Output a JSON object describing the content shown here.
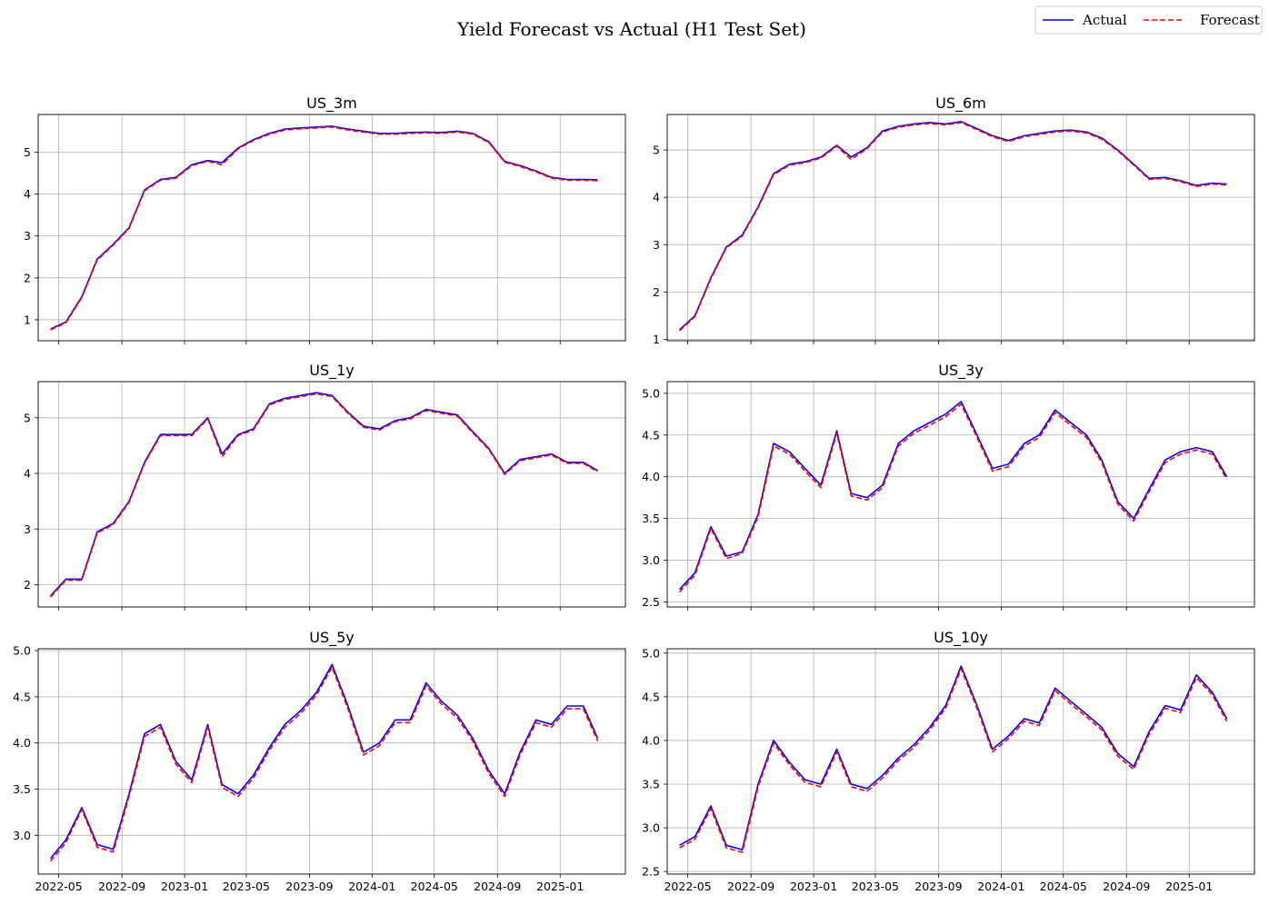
{
  "figure": {
    "title": "Yield Forecast vs Actual (H1 Test Set)",
    "legend": {
      "placement": "top-right",
      "entries": [
        "Actual",
        "Forecast"
      ]
    },
    "colors": {
      "actual": "#0000ff",
      "forecast": "#ff0000",
      "grid": "#b0b0b0",
      "axes": "#000000"
    }
  },
  "chart_data": [
    {
      "type": "line",
      "title": "US_3m",
      "xlabel": "",
      "ylabel": "",
      "x_dates": [
        "2022-04-15",
        "2022-05-15",
        "2022-06-15",
        "2022-07-15",
        "2022-08-15",
        "2022-09-15",
        "2022-10-15",
        "2022-11-15",
        "2022-12-15",
        "2023-01-15",
        "2023-02-15",
        "2023-03-15",
        "2023-04-15",
        "2023-05-15",
        "2023-06-15",
        "2023-07-15",
        "2023-08-15",
        "2023-09-15",
        "2023-10-15",
        "2023-11-15",
        "2023-12-15",
        "2024-01-15",
        "2024-02-15",
        "2024-03-15",
        "2024-04-15",
        "2024-05-15",
        "2024-06-15",
        "2024-07-15",
        "2024-08-15",
        "2024-09-15",
        "2024-10-15",
        "2024-11-15",
        "2024-12-15",
        "2025-01-15",
        "2025-02-15",
        "2025-03-15"
      ],
      "series": [
        {
          "name": "Actual",
          "values": [
            0.78,
            0.95,
            1.55,
            2.45,
            2.8,
            3.2,
            4.1,
            4.35,
            4.4,
            4.7,
            4.8,
            4.75,
            5.1,
            5.3,
            5.45,
            5.55,
            5.58,
            5.6,
            5.62,
            5.55,
            5.5,
            5.45,
            5.45,
            5.47,
            5.48,
            5.47,
            5.5,
            5.45,
            5.25,
            4.78,
            4.68,
            4.55,
            4.4,
            4.35,
            4.35,
            4.34
          ]
        },
        {
          "name": "Forecast",
          "values": [
            0.76,
            0.93,
            1.53,
            2.43,
            2.78,
            3.18,
            4.08,
            4.33,
            4.38,
            4.68,
            4.78,
            4.7,
            5.08,
            5.28,
            5.43,
            5.53,
            5.56,
            5.58,
            5.6,
            5.53,
            5.48,
            5.43,
            5.43,
            5.45,
            5.46,
            5.45,
            5.48,
            5.43,
            5.23,
            4.76,
            4.66,
            4.53,
            4.38,
            4.33,
            4.33,
            4.32
          ]
        }
      ],
      "ylim": [
        0.5,
        5.9
      ],
      "yticks": [
        "1",
        "2",
        "3",
        "4",
        "5"
      ],
      "grid": true,
      "xticks": [
        "2022-05",
        "2022-09",
        "2023-01",
        "2023-05",
        "2023-09",
        "2024-01",
        "2024-05",
        "2024-09",
        "2025-01"
      ],
      "show_xtick_labels": false
    },
    {
      "type": "line",
      "title": "US_6m",
      "xlabel": "",
      "ylabel": "",
      "x_dates": [
        "2022-04-15",
        "2022-05-15",
        "2022-06-15",
        "2022-07-15",
        "2022-08-15",
        "2022-09-15",
        "2022-10-15",
        "2022-11-15",
        "2022-12-15",
        "2023-01-15",
        "2023-02-15",
        "2023-03-15",
        "2023-04-15",
        "2023-05-15",
        "2023-06-15",
        "2023-07-15",
        "2023-08-15",
        "2023-09-15",
        "2023-10-15",
        "2023-11-15",
        "2023-12-15",
        "2024-01-15",
        "2024-02-15",
        "2024-03-15",
        "2024-04-15",
        "2024-05-15",
        "2024-06-15",
        "2024-07-15",
        "2024-08-15",
        "2024-09-15",
        "2024-10-15",
        "2024-11-15",
        "2024-12-15",
        "2025-01-15",
        "2025-02-15",
        "2025-03-15"
      ],
      "series": [
        {
          "name": "Actual",
          "values": [
            1.2,
            1.5,
            2.3,
            2.95,
            3.2,
            3.8,
            4.5,
            4.7,
            4.75,
            4.85,
            5.1,
            4.85,
            5.05,
            5.4,
            5.5,
            5.55,
            5.58,
            5.55,
            5.6,
            5.45,
            5.3,
            5.2,
            5.3,
            5.35,
            5.4,
            5.42,
            5.38,
            5.25,
            5.0,
            4.7,
            4.4,
            4.42,
            4.35,
            4.25,
            4.3,
            4.28
          ]
        },
        {
          "name": "Forecast",
          "values": [
            1.18,
            1.48,
            2.28,
            2.93,
            3.18,
            3.78,
            4.48,
            4.68,
            4.73,
            4.83,
            5.08,
            4.8,
            5.03,
            5.38,
            5.48,
            5.53,
            5.56,
            5.53,
            5.58,
            5.43,
            5.28,
            5.18,
            5.28,
            5.33,
            5.38,
            5.4,
            5.36,
            5.23,
            4.98,
            4.68,
            4.38,
            4.4,
            4.33,
            4.23,
            4.28,
            4.26
          ]
        }
      ],
      "ylim": [
        0.97,
        5.75
      ],
      "yticks": [
        "1",
        "2",
        "3",
        "4",
        "5"
      ],
      "grid": true,
      "xticks": [
        "2022-05",
        "2022-09",
        "2023-01",
        "2023-05",
        "2023-09",
        "2024-01",
        "2024-05",
        "2024-09",
        "2025-01"
      ],
      "show_xtick_labels": false
    },
    {
      "type": "line",
      "title": "US_1y",
      "xlabel": "",
      "ylabel": "",
      "x_dates": [
        "2022-04-15",
        "2022-05-15",
        "2022-06-15",
        "2022-07-15",
        "2022-08-15",
        "2022-09-15",
        "2022-10-15",
        "2022-11-15",
        "2022-12-15",
        "2023-01-15",
        "2023-02-15",
        "2023-03-15",
        "2023-04-15",
        "2023-05-15",
        "2023-06-15",
        "2023-07-15",
        "2023-08-15",
        "2023-09-15",
        "2023-10-15",
        "2023-11-15",
        "2023-12-15",
        "2024-01-15",
        "2024-02-15",
        "2024-03-15",
        "2024-04-15",
        "2024-05-15",
        "2024-06-15",
        "2024-07-15",
        "2024-08-15",
        "2024-09-15",
        "2024-10-15",
        "2024-11-15",
        "2024-12-15",
        "2025-01-15",
        "2025-02-15",
        "2025-03-15"
      ],
      "series": [
        {
          "name": "Actual",
          "values": [
            1.8,
            2.1,
            2.1,
            2.95,
            3.1,
            3.5,
            4.2,
            4.7,
            4.7,
            4.7,
            5.0,
            4.35,
            4.7,
            4.8,
            5.25,
            5.35,
            5.4,
            5.45,
            5.4,
            5.1,
            4.85,
            4.8,
            4.95,
            5.0,
            5.15,
            5.1,
            5.05,
            4.75,
            4.45,
            4.0,
            4.25,
            4.3,
            4.35,
            4.2,
            4.2,
            4.05
          ]
        },
        {
          "name": "Forecast",
          "values": [
            1.78,
            2.08,
            2.08,
            2.93,
            3.08,
            3.48,
            4.18,
            4.68,
            4.68,
            4.68,
            4.98,
            4.3,
            4.68,
            4.78,
            5.23,
            5.33,
            5.38,
            5.43,
            5.38,
            5.08,
            4.83,
            4.78,
            4.93,
            4.98,
            5.13,
            5.08,
            5.03,
            4.73,
            4.43,
            3.98,
            4.23,
            4.28,
            4.33,
            4.18,
            4.18,
            4.03
          ]
        }
      ],
      "ylim": [
        1.6,
        5.65
      ],
      "yticks": [
        "2",
        "3",
        "4",
        "5"
      ],
      "grid": true,
      "xticks": [
        "2022-05",
        "2022-09",
        "2023-01",
        "2023-05",
        "2023-09",
        "2024-01",
        "2024-05",
        "2024-09",
        "2025-01"
      ],
      "show_xtick_labels": false
    },
    {
      "type": "line",
      "title": "US_3y",
      "xlabel": "",
      "ylabel": "",
      "x_dates": [
        "2022-04-15",
        "2022-05-15",
        "2022-06-15",
        "2022-07-15",
        "2022-08-15",
        "2022-09-15",
        "2022-10-15",
        "2022-11-15",
        "2022-12-15",
        "2023-01-15",
        "2023-02-15",
        "2023-03-15",
        "2023-04-15",
        "2023-05-15",
        "2023-06-15",
        "2023-07-15",
        "2023-08-15",
        "2023-09-15",
        "2023-10-15",
        "2023-11-15",
        "2023-12-15",
        "2024-01-15",
        "2024-02-15",
        "2024-03-15",
        "2024-04-15",
        "2024-05-15",
        "2024-06-15",
        "2024-07-15",
        "2024-08-15",
        "2024-09-15",
        "2024-10-15",
        "2024-11-15",
        "2024-12-15",
        "2025-01-15",
        "2025-02-15",
        "2025-03-15"
      ],
      "series": [
        {
          "name": "Actual",
          "values": [
            2.65,
            2.85,
            3.4,
            3.05,
            3.1,
            3.55,
            4.4,
            4.3,
            4.1,
            3.9,
            4.55,
            3.8,
            3.75,
            3.9,
            4.4,
            4.55,
            4.65,
            4.75,
            4.9,
            4.5,
            4.1,
            4.15,
            4.4,
            4.5,
            4.8,
            4.65,
            4.5,
            4.2,
            3.7,
            3.5,
            3.85,
            4.2,
            4.3,
            4.35,
            4.3,
            4.0
          ]
        },
        {
          "name": "Forecast",
          "values": [
            2.62,
            2.82,
            3.38,
            3.02,
            3.08,
            3.52,
            4.37,
            4.27,
            4.07,
            3.87,
            4.52,
            3.77,
            3.72,
            3.87,
            4.37,
            4.52,
            4.62,
            4.72,
            4.87,
            4.47,
            4.07,
            4.12,
            4.37,
            4.47,
            4.77,
            4.62,
            4.47,
            4.17,
            3.67,
            3.47,
            3.82,
            4.17,
            4.27,
            4.32,
            4.27,
            3.97
          ]
        }
      ],
      "ylim": [
        2.44,
        5.14
      ],
      "yticks": [
        "2.5",
        "3.0",
        "3.5",
        "4.0",
        "4.5",
        "5.0"
      ],
      "grid": true,
      "xticks": [
        "2022-05",
        "2022-09",
        "2023-01",
        "2023-05",
        "2023-09",
        "2024-01",
        "2024-05",
        "2024-09",
        "2025-01"
      ],
      "show_xtick_labels": false
    },
    {
      "type": "line",
      "title": "US_5y",
      "xlabel": "",
      "ylabel": "",
      "x_dates": [
        "2022-04-15",
        "2022-05-15",
        "2022-06-15",
        "2022-07-15",
        "2022-08-15",
        "2022-09-15",
        "2022-10-15",
        "2022-11-15",
        "2022-12-15",
        "2023-01-15",
        "2023-02-15",
        "2023-03-15",
        "2023-04-15",
        "2023-05-15",
        "2023-06-15",
        "2023-07-15",
        "2023-08-15",
        "2023-09-15",
        "2023-10-15",
        "2023-11-15",
        "2023-12-15",
        "2024-01-15",
        "2024-02-15",
        "2024-03-15",
        "2024-04-15",
        "2024-05-15",
        "2024-06-15",
        "2024-07-15",
        "2024-08-15",
        "2024-09-15",
        "2024-10-15",
        "2024-11-15",
        "2024-12-15",
        "2025-01-15",
        "2025-02-15",
        "2025-03-15"
      ],
      "series": [
        {
          "name": "Actual",
          "values": [
            2.75,
            2.95,
            3.3,
            2.9,
            2.85,
            3.45,
            4.1,
            4.2,
            3.8,
            3.6,
            4.2,
            3.55,
            3.45,
            3.65,
            3.95,
            4.2,
            4.35,
            4.55,
            4.85,
            4.4,
            3.9,
            4.0,
            4.25,
            4.25,
            4.65,
            4.45,
            4.3,
            4.05,
            3.7,
            3.45,
            3.9,
            4.25,
            4.2,
            4.4,
            4.4,
            4.05
          ]
        },
        {
          "name": "Forecast",
          "values": [
            2.72,
            2.92,
            3.28,
            2.87,
            2.82,
            3.42,
            4.07,
            4.17,
            3.77,
            3.57,
            4.17,
            3.52,
            3.42,
            3.62,
            3.92,
            4.17,
            4.32,
            4.52,
            4.82,
            4.37,
            3.87,
            3.97,
            4.22,
            4.22,
            4.62,
            4.42,
            4.27,
            4.02,
            3.67,
            3.42,
            3.87,
            4.22,
            4.17,
            4.37,
            4.37,
            4.02
          ]
        }
      ],
      "ylim": [
        2.58,
        5.02
      ],
      "yticks": [
        "3.0",
        "3.5",
        "4.0",
        "4.5",
        "5.0"
      ],
      "grid": true,
      "xticks": [
        "2022-05",
        "2022-09",
        "2023-01",
        "2023-05",
        "2023-09",
        "2024-01",
        "2024-05",
        "2024-09",
        "2025-01"
      ],
      "show_xtick_labels": true
    },
    {
      "type": "line",
      "title": "US_10y",
      "xlabel": "",
      "ylabel": "",
      "x_dates": [
        "2022-04-15",
        "2022-05-15",
        "2022-06-15",
        "2022-07-15",
        "2022-08-15",
        "2022-09-15",
        "2022-10-15",
        "2022-11-15",
        "2022-12-15",
        "2023-01-15",
        "2023-02-15",
        "2023-03-15",
        "2023-04-15",
        "2023-05-15",
        "2023-06-15",
        "2023-07-15",
        "2023-08-15",
        "2023-09-15",
        "2023-10-15",
        "2023-11-15",
        "2023-12-15",
        "2024-01-15",
        "2024-02-15",
        "2024-03-15",
        "2024-04-15",
        "2024-05-15",
        "2024-06-15",
        "2024-07-15",
        "2024-08-15",
        "2024-09-15",
        "2024-10-15",
        "2024-11-15",
        "2024-12-15",
        "2025-01-15",
        "2025-02-15",
        "2025-03-15"
      ],
      "series": [
        {
          "name": "Actual",
          "values": [
            2.8,
            2.9,
            3.25,
            2.8,
            2.75,
            3.5,
            4.0,
            3.75,
            3.55,
            3.5,
            3.9,
            3.5,
            3.45,
            3.6,
            3.8,
            3.95,
            4.15,
            4.4,
            4.85,
            4.4,
            3.9,
            4.05,
            4.25,
            4.2,
            4.6,
            4.45,
            4.3,
            4.15,
            3.85,
            3.7,
            4.1,
            4.4,
            4.35,
            4.75,
            4.55,
            4.25
          ]
        },
        {
          "name": "Forecast",
          "values": [
            2.77,
            2.87,
            3.22,
            2.77,
            2.72,
            3.47,
            3.97,
            3.72,
            3.52,
            3.47,
            3.87,
            3.47,
            3.42,
            3.57,
            3.77,
            3.92,
            4.12,
            4.37,
            4.82,
            4.37,
            3.87,
            4.02,
            4.22,
            4.17,
            4.57,
            4.42,
            4.27,
            4.12,
            3.82,
            3.67,
            4.07,
            4.37,
            4.32,
            4.72,
            4.52,
            4.22
          ]
        }
      ],
      "ylim": [
        2.47,
        5.05
      ],
      "yticks": [
        "2.5",
        "3.0",
        "3.5",
        "4.0",
        "4.5",
        "5.0"
      ],
      "grid": true,
      "xticks": [
        "2022-05",
        "2022-09",
        "2023-01",
        "2023-05",
        "2023-09",
        "2024-01",
        "2024-05",
        "2024-09",
        "2025-01"
      ],
      "show_xtick_labels": true
    }
  ]
}
